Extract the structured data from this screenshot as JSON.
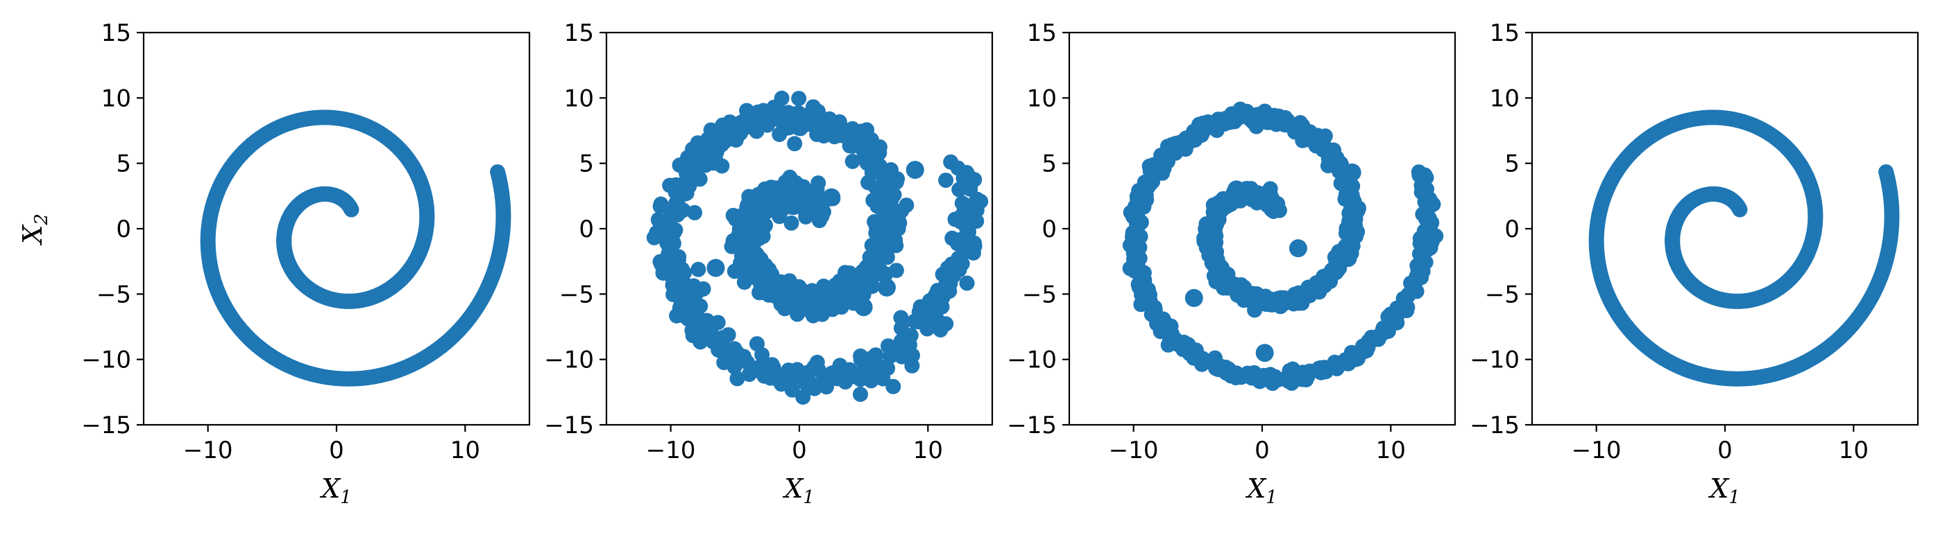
{
  "chart_data": [
    {
      "type": "scatter",
      "panel": "1",
      "title": "",
      "xlabel": "X",
      "xlabel_subscript": "1",
      "ylabel": "X",
      "ylabel_subscript": "2",
      "xlim": [
        -15,
        15
      ],
      "ylim": [
        -15,
        15
      ],
      "xticks": [
        -10,
        0,
        10
      ],
      "xtick_labels": [
        "−10",
        "0",
        "10"
      ],
      "yticks": [
        -15,
        -10,
        -5,
        0,
        5,
        10,
        15
      ],
      "ytick_labels": [
        "−15",
        "−10",
        "−5",
        "0",
        "5",
        "10",
        "15"
      ],
      "grid": false,
      "legend": "none",
      "color": "#1f77b4",
      "spiral": {
        "a": 1.0,
        "b": 0.95,
        "theta_start": 0.9,
        "theta_end": 12.9,
        "noise": 0.0
      },
      "outliers": []
    },
    {
      "type": "scatter",
      "panel": "2",
      "title": "",
      "xlabel": "X",
      "xlabel_subscript": "1",
      "ylabel": "",
      "ylabel_subscript": "",
      "xlim": [
        -15,
        15
      ],
      "ylim": [
        -15,
        15
      ],
      "xticks": [
        -10,
        0,
        10
      ],
      "xtick_labels": [
        "−10",
        "0",
        "10"
      ],
      "yticks": [
        -15,
        -10,
        -5,
        0,
        5,
        10,
        15
      ],
      "ytick_labels": [
        "−15",
        "−10",
        "−5",
        "0",
        "5",
        "10",
        "15"
      ],
      "grid": false,
      "legend": "none",
      "color": "#1f77b4",
      "spiral": {
        "a": 1.0,
        "b": 0.95,
        "theta_start": 0.9,
        "theta_end": 12.9,
        "noise": 1.1
      },
      "outliers": [
        [
          -6.5,
          -3.0
        ],
        [
          9.0,
          4.5
        ],
        [
          2.5,
          2.4
        ],
        [
          6.8,
          -4.5
        ],
        [
          -1.0,
          3.5
        ],
        [
          5.0,
          -6.0
        ]
      ]
    },
    {
      "type": "scatter",
      "panel": "3",
      "title": "",
      "xlabel": "X",
      "xlabel_subscript": "1",
      "ylabel": "",
      "ylabel_subscript": "",
      "xlim": [
        -15,
        15
      ],
      "ylim": [
        -15,
        15
      ],
      "xticks": [
        -10,
        0,
        10
      ],
      "xtick_labels": [
        "−10",
        "0",
        "10"
      ],
      "yticks": [
        -15,
        -10,
        -5,
        0,
        5,
        10,
        15
      ],
      "ytick_labels": [
        "−15",
        "−10",
        "−5",
        "0",
        "5",
        "10",
        "15"
      ],
      "grid": false,
      "legend": "none",
      "color": "#1f77b4",
      "spiral": {
        "a": 1.0,
        "b": 0.95,
        "theta_start": 0.9,
        "theta_end": 12.9,
        "noise": 0.45
      },
      "outliers": [
        [
          -5.3,
          -5.3
        ],
        [
          -2.0,
          3.0
        ],
        [
          2.8,
          -1.5
        ],
        [
          0.2,
          -9.5
        ],
        [
          7.0,
          4.3
        ],
        [
          7.2,
          1.5
        ]
      ]
    },
    {
      "type": "scatter",
      "panel": "4",
      "title": "",
      "xlabel": "X",
      "xlabel_subscript": "1",
      "ylabel": "",
      "ylabel_subscript": "",
      "xlim": [
        -15,
        15
      ],
      "ylim": [
        -15,
        15
      ],
      "xticks": [
        -10,
        0,
        10
      ],
      "xtick_labels": [
        "−10",
        "0",
        "10"
      ],
      "yticks": [
        -15,
        -10,
        -5,
        0,
        5,
        10,
        15
      ],
      "ytick_labels": [
        "−15",
        "−10",
        "−5",
        "0",
        "5",
        "10",
        "15"
      ],
      "grid": false,
      "legend": "none",
      "color": "#1f77b4",
      "spiral": {
        "a": 1.0,
        "b": 0.95,
        "theta_start": 0.9,
        "theta_end": 12.9,
        "noise": 0.0
      },
      "outliers": []
    }
  ]
}
